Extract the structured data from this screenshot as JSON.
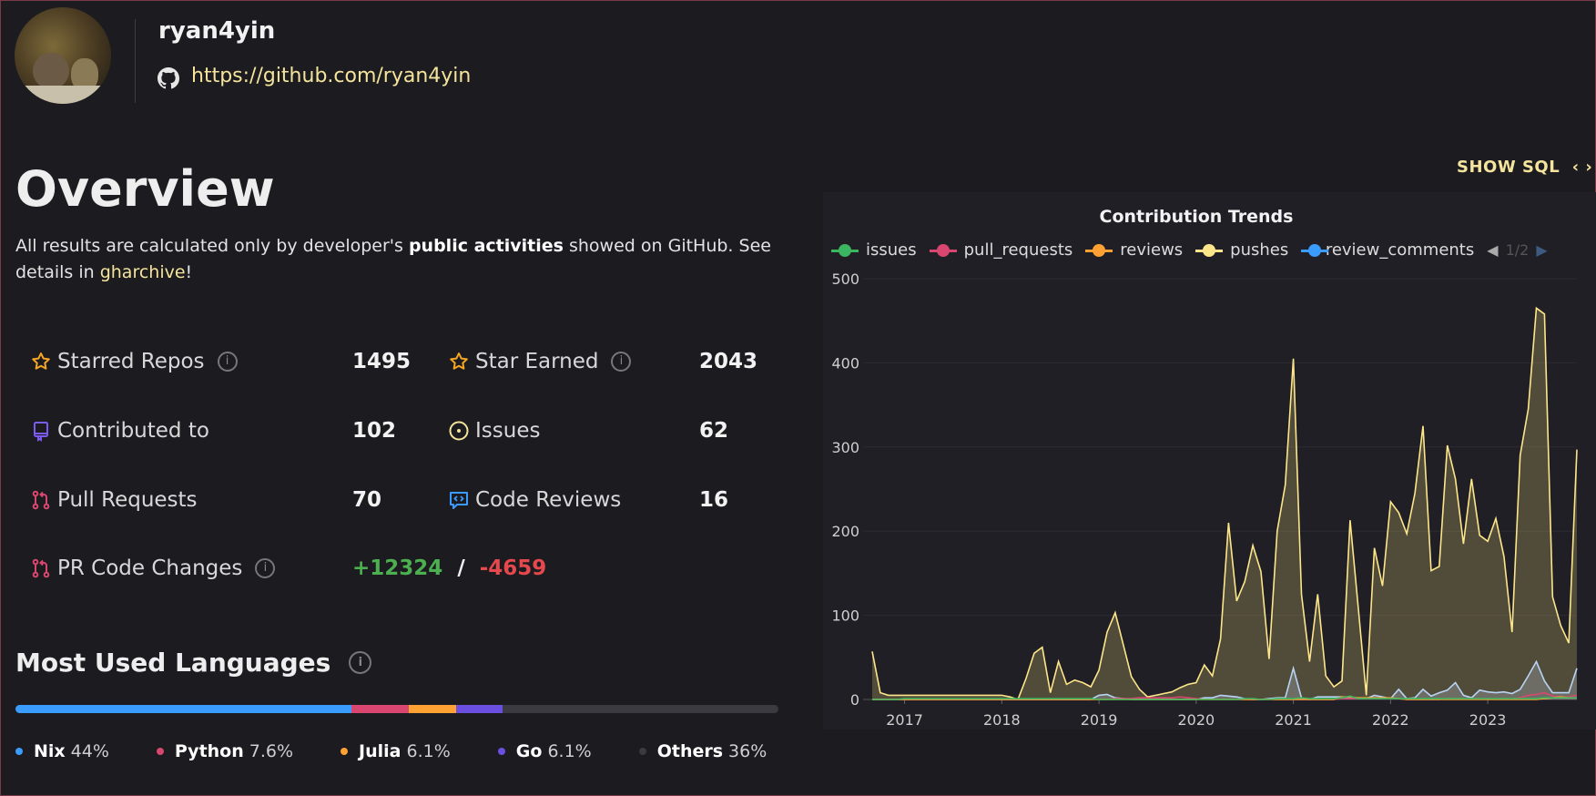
{
  "profile": {
    "username": "ryan4yin",
    "github_url": "https://github.com/ryan4yin",
    "avatar_icon": "user-avatar-photo"
  },
  "overview": {
    "title": "Overview",
    "desc_prefix": "All results are calculated only by developer's ",
    "desc_bold": "public activities",
    "desc_mid": " showed on GitHub. See details in ",
    "desc_link": "gharchive",
    "desc_suffix": "!"
  },
  "stats": {
    "starred_repos": {
      "label": "Starred Repos",
      "value": "1495"
    },
    "star_earned": {
      "label": "Star Earned",
      "value": "2043"
    },
    "contributed_to": {
      "label": "Contributed to",
      "value": "102"
    },
    "issues": {
      "label": "Issues",
      "value": "62"
    },
    "pull_requests": {
      "label": "Pull Requests",
      "value": "70"
    },
    "code_reviews": {
      "label": "Code Reviews",
      "value": "16"
    },
    "pr_code_changes": {
      "label": "PR Code Changes",
      "additions": "+12324",
      "separator": "/",
      "deletions": "-4659"
    },
    "colors": {
      "additions": "#4caf50",
      "deletions": "#e5484d"
    }
  },
  "languages": {
    "title": "Most Used Languages",
    "items": [
      {
        "name": "Nix",
        "pct_label": "44%",
        "pct": 44,
        "color": "#3b9cff"
      },
      {
        "name": "Python",
        "pct_label": "7.6%",
        "pct": 7.6,
        "color": "#d9466f"
      },
      {
        "name": "Julia",
        "pct_label": "6.1%",
        "pct": 6.1,
        "color": "#ffa133"
      },
      {
        "name": "Go",
        "pct_label": "6.1%",
        "pct": 6.1,
        "color": "#6a4fe0"
      },
      {
        "name": "Others",
        "pct_label": "36%",
        "pct": 36,
        "color": "#3a3a40"
      }
    ]
  },
  "show_sql": {
    "label": "SHOW SQL",
    "icon": "code-brackets-icon"
  },
  "chart_data": {
    "type": "area",
    "title": "Contribution Trends",
    "legend_page": "1/2",
    "legend_placement": "top",
    "x_start": "2016-09",
    "x_end": "2023-12",
    "x_interval": "month",
    "x_ticks": [
      "2017",
      "2018",
      "2019",
      "2020",
      "2021",
      "2022",
      "2023"
    ],
    "ylim": [
      0,
      500
    ],
    "y_ticks": [
      "0",
      "100",
      "200",
      "300",
      "400",
      "500"
    ],
    "grid": true,
    "series": [
      {
        "name": "issues",
        "color": "#3bb55f",
        "values": [
          0,
          0,
          0,
          0,
          1,
          1,
          1,
          1,
          1,
          1,
          1,
          1,
          1,
          1,
          1,
          1,
          1,
          1,
          1,
          1,
          1,
          1,
          1,
          1,
          1,
          1,
          1,
          1,
          0,
          0,
          0,
          0,
          0,
          0,
          0,
          0,
          0,
          0,
          0,
          0,
          0,
          0,
          0,
          0,
          0,
          0,
          1,
          1,
          0,
          0,
          1,
          1,
          1,
          2,
          1,
          1,
          1,
          1,
          2,
          4,
          1,
          1,
          1,
          1,
          1,
          1,
          1,
          1,
          1,
          1,
          1,
          1,
          1,
          1,
          1,
          1,
          1,
          1,
          1,
          1,
          1,
          1,
          1,
          2,
          2,
          2,
          2,
          2
        ]
      },
      {
        "name": "pull_requests",
        "color": "#d9466f",
        "values": [
          0,
          0,
          0,
          0,
          0,
          0,
          0,
          0,
          0,
          0,
          0,
          0,
          0,
          0,
          0,
          0,
          0,
          0,
          0,
          0,
          0,
          0,
          0,
          0,
          0,
          0,
          0,
          0,
          0,
          0,
          1,
          1,
          1,
          2,
          2,
          2,
          2,
          2,
          3,
          2,
          1,
          0,
          0,
          0,
          0,
          0,
          0,
          0,
          0,
          0,
          0,
          0,
          0,
          0,
          0,
          0,
          0,
          0,
          1,
          1,
          1,
          1,
          1,
          1,
          1,
          1,
          0,
          0,
          0,
          0,
          0,
          1,
          1,
          1,
          1,
          1,
          1,
          1,
          1,
          1,
          2,
          5,
          6,
          8,
          4,
          3,
          3,
          5
        ]
      },
      {
        "name": "reviews",
        "color": "#ffa133",
        "values": [
          0,
          0,
          0,
          0,
          0,
          0,
          0,
          0,
          0,
          0,
          0,
          0,
          0,
          0,
          0,
          0,
          0,
          0,
          0,
          0,
          0,
          0,
          0,
          0,
          0,
          0,
          0,
          0,
          0,
          0,
          0,
          0,
          0,
          0,
          0,
          0,
          0,
          0,
          0,
          0,
          0,
          0,
          0,
          0,
          0,
          0,
          0,
          0,
          0,
          0,
          0,
          0,
          0,
          0,
          0,
          0,
          0,
          0,
          3,
          3,
          2,
          2,
          2,
          2,
          2,
          1,
          0,
          0,
          0,
          0,
          0,
          0,
          0,
          0,
          0,
          0,
          0,
          0,
          0,
          0,
          0,
          0,
          0,
          1,
          2,
          3,
          2,
          2
        ]
      },
      {
        "name": "pushes",
        "color": "#fde68a",
        "values": [
          57,
          8,
          5,
          5,
          5,
          5,
          5,
          5,
          5,
          5,
          5,
          5,
          5,
          5,
          5,
          5,
          5,
          3,
          0,
          25,
          55,
          62,
          8,
          45,
          18,
          23,
          20,
          15,
          35,
          80,
          103,
          65,
          27,
          12,
          3,
          5,
          7,
          9,
          14,
          18,
          20,
          41,
          28,
          72,
          210,
          117,
          140,
          183,
          152,
          48,
          200,
          255,
          405,
          125,
          45,
          125,
          28,
          15,
          22,
          213,
          110,
          5,
          180,
          135,
          235,
          222,
          197,
          245,
          325,
          153,
          158,
          302,
          262,
          185,
          262,
          195,
          188,
          215,
          170,
          80,
          290,
          345,
          465,
          458,
          122,
          88,
          67,
          297
        ]
      },
      {
        "name": "review_comments",
        "color": "#3b9cff",
        "line_color": "#b8d4f5",
        "values": [
          0,
          0,
          0,
          0,
          0,
          0,
          0,
          0,
          0,
          0,
          0,
          0,
          0,
          0,
          0,
          0,
          0,
          0,
          0,
          0,
          0,
          0,
          0,
          0,
          0,
          0,
          0,
          0,
          5,
          6,
          2,
          1,
          0,
          0,
          0,
          0,
          0,
          0,
          0,
          0,
          0,
          2,
          2,
          5,
          4,
          3,
          1,
          0,
          0,
          1,
          2,
          2,
          37,
          2,
          0,
          3,
          3,
          3,
          3,
          1,
          1,
          1,
          5,
          3,
          1,
          12,
          1,
          2,
          12,
          4,
          8,
          11,
          20,
          5,
          2,
          11,
          9,
          8,
          9,
          7,
          12,
          28,
          45,
          22,
          8,
          8,
          8,
          37
        ]
      }
    ]
  }
}
